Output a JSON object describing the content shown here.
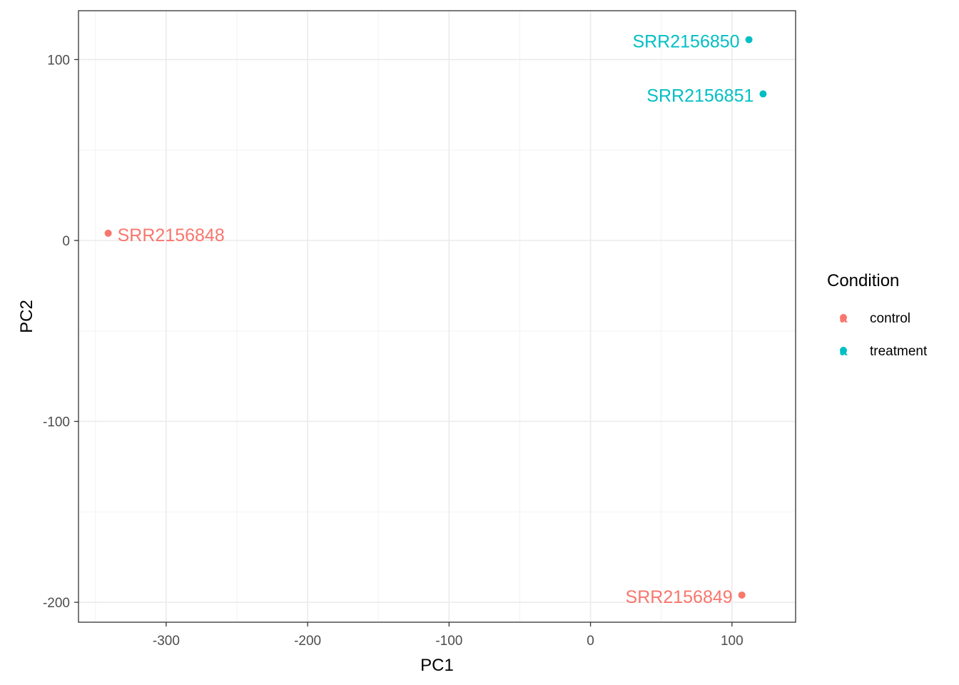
{
  "chart_data": {
    "type": "scatter",
    "xlabel": "PC1",
    "ylabel": "PC2",
    "xlim": [
      -362,
      145
    ],
    "ylim": [
      -211,
      127
    ],
    "x_ticks": [
      -300,
      -200,
      -100,
      0,
      100
    ],
    "y_ticks": [
      -200,
      -100,
      0,
      100
    ],
    "grid": true,
    "legend": {
      "title": "Condition",
      "placement": "right",
      "entries": [
        {
          "label": "control",
          "color": "#F8766D"
        },
        {
          "label": "treatment",
          "color": "#00BFC4"
        }
      ]
    },
    "points": [
      {
        "label": "SRR2156848",
        "x": -341,
        "y": 4,
        "group": "control",
        "color": "#F8766D"
      },
      {
        "label": "SRR2156849",
        "x": 107,
        "y": -196,
        "group": "control",
        "color": "#F8766D"
      },
      {
        "label": "SRR2156850",
        "x": 112,
        "y": 111,
        "group": "treatment",
        "color": "#00BFC4"
      },
      {
        "label": "SRR2156851",
        "x": 122,
        "y": 81,
        "group": "treatment",
        "color": "#00BFC4"
      }
    ]
  }
}
